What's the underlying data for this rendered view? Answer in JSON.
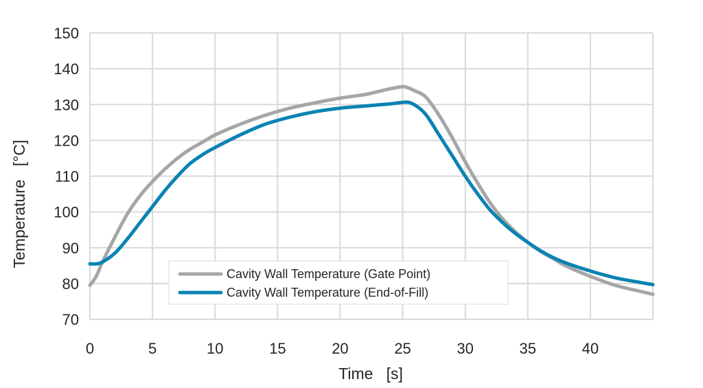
{
  "chart_data": {
    "type": "line",
    "title": "",
    "xlabel": "Time   [s]",
    "ylabel": "Temperature   [°C]",
    "xlim": [
      0,
      45
    ],
    "ylim": [
      70,
      150
    ],
    "xticks": [
      0,
      5,
      10,
      15,
      20,
      25,
      30,
      35,
      40
    ],
    "yticks": [
      70,
      80,
      90,
      100,
      110,
      120,
      130,
      140,
      150
    ],
    "grid": true,
    "legend_position": "bottom-left",
    "series": [
      {
        "name": "Cavity Wall Temperature (Gate Point)",
        "color": "#a6a6a6",
        "x": [
          0,
          0.5,
          1,
          2,
          3,
          4,
          5,
          6,
          7,
          8,
          9,
          10,
          12,
          14,
          16,
          18,
          20,
          22,
          23,
          24,
          25,
          25.5,
          26,
          26.5,
          27,
          28,
          29,
          30,
          31,
          32,
          33,
          34,
          35,
          36,
          37,
          38,
          40,
          42,
          44,
          45
        ],
        "y": [
          79.5,
          82,
          86,
          93,
          99.5,
          104.5,
          108.5,
          112,
          115,
          117.5,
          119.5,
          121.5,
          124.5,
          127,
          129,
          130.5,
          131.8,
          132.8,
          133.6,
          134.4,
          135,
          134.6,
          133.8,
          133,
          131.5,
          126.5,
          120.5,
          114,
          108,
          102.5,
          98,
          94.5,
          91.5,
          89,
          87,
          85,
          82,
          79.5,
          77.8,
          77
        ]
      },
      {
        "name": "Cavity Wall Temperature (End-of-Fill)",
        "color": "#0a83b3",
        "x": [
          0,
          0.5,
          1,
          2,
          3,
          4,
          5,
          6,
          7,
          8,
          9,
          10,
          12,
          14,
          16,
          18,
          20,
          22,
          23,
          24,
          25,
          25.5,
          26,
          26.5,
          27,
          28,
          29,
          30,
          31,
          32,
          33,
          34,
          35,
          36,
          37,
          38,
          40,
          42,
          44,
          45
        ],
        "y": [
          85.5,
          85.5,
          86,
          88.5,
          92.5,
          97,
          101.5,
          106,
          110,
          113.5,
          116,
          118,
          121.5,
          124.5,
          126.5,
          128,
          129,
          129.6,
          129.9,
          130.2,
          130.6,
          130.6,
          129.8,
          128.5,
          126.5,
          121,
          115.5,
          110,
          105,
          100.5,
          97,
          94,
          91.5,
          89.2,
          87.3,
          85.8,
          83.5,
          81.6,
          80.3,
          79.7
        ]
      }
    ]
  }
}
